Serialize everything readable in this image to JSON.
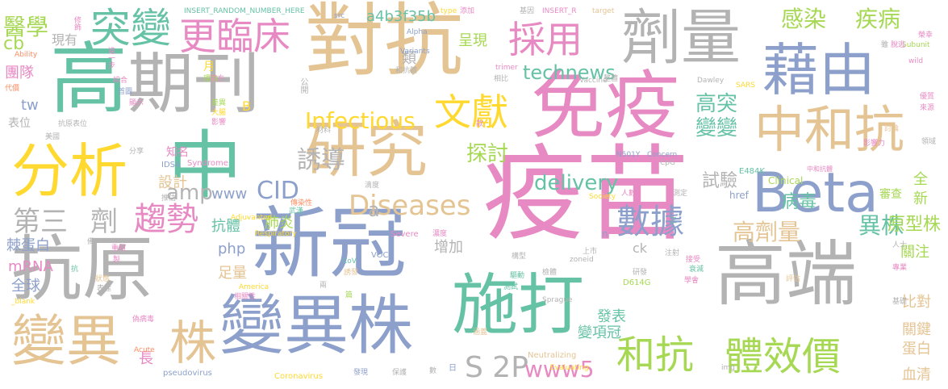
{
  "colors": {
    "pink": "#e78ac3",
    "blue": "#8da0cb",
    "tan": "#e5c494",
    "gray": "#b3b3b3",
    "green": "#66c2a5",
    "lime": "#a6d854",
    "yellow": "#ffd92f",
    "orange": "#fc8d62"
  },
  "words": [
    {
      "text": "疫苗",
      "color": "pink"
    },
    {
      "text": "對抗",
      "color": "tan"
    },
    {
      "text": "免疫",
      "color": "pink"
    },
    {
      "text": "高",
      "color": "green"
    },
    {
      "text": "期刊",
      "color": "gray"
    },
    {
      "text": "新冠",
      "color": "blue"
    },
    {
      "text": "抗原",
      "color": "gray"
    },
    {
      "text": "變異株",
      "color": "blue"
    },
    {
      "text": "高端",
      "color": "gray"
    },
    {
      "text": "Beta",
      "color": "blue"
    },
    {
      "text": "藉由",
      "color": "blue"
    },
    {
      "text": "劑量",
      "color": "gray"
    },
    {
      "text": "中和抗",
      "color": "tan"
    },
    {
      "text": "研究",
      "color": "tan"
    },
    {
      "text": "分析",
      "color": "yellow"
    },
    {
      "text": "中",
      "color": "green"
    },
    {
      "text": "施打",
      "color": "green"
    },
    {
      "text": "變異",
      "color": "tan"
    },
    {
      "text": "株",
      "color": "tan"
    },
    {
      "text": "突變",
      "color": "green"
    },
    {
      "text": "更臨床",
      "color": "pink"
    },
    {
      "text": "醫學",
      "color": "lime"
    },
    {
      "text": "採用",
      "color": "pink"
    },
    {
      "text": "文獻",
      "color": "yellow"
    },
    {
      "text": "感染",
      "color": "lime"
    },
    {
      "text": "疾病",
      "color": "lime"
    },
    {
      "text": "technews",
      "color": "green"
    },
    {
      "text": "Infectious",
      "color": "yellow"
    },
    {
      "text": "Diseases",
      "color": "tan"
    },
    {
      "text": "CID",
      "color": "blue"
    },
    {
      "text": "誘導",
      "color": "gray"
    },
    {
      "text": "探討",
      "color": "lime"
    },
    {
      "text": "delivery",
      "color": "green"
    },
    {
      "text": "第三",
      "color": "gray"
    },
    {
      "text": "劑",
      "color": "gray"
    },
    {
      "text": "趨勢",
      "color": "pink"
    },
    {
      "text": "數據",
      "color": "blue"
    },
    {
      "text": "和抗",
      "color": "lime"
    },
    {
      "text": "體效價",
      "color": "lime"
    },
    {
      "text": "高劑量",
      "color": "tan"
    },
    {
      "text": "異株",
      "color": "green"
    },
    {
      "text": "原型株",
      "color": "lime"
    },
    {
      "text": "病毒",
      "color": "green"
    },
    {
      "text": "試驗",
      "color": "gray"
    },
    {
      "text": "高突",
      "color": "green"
    },
    {
      "text": "變變",
      "color": "green"
    },
    {
      "text": "S 2P",
      "color": "gray"
    },
    {
      "text": "www5",
      "color": "pink"
    },
    {
      "text": "amp",
      "color": "gray"
    },
    {
      "text": "www",
      "color": "blue"
    },
    {
      "text": "肺炎",
      "color": "lime"
    },
    {
      "text": "抗體",
      "color": "green"
    },
    {
      "text": "php",
      "color": "blue"
    },
    {
      "text": "足量",
      "color": "tan"
    },
    {
      "text": "增加",
      "color": "gray"
    },
    {
      "text": "關注",
      "color": "lime"
    },
    {
      "text": "血清",
      "color": "tan"
    },
    {
      "text": "蛋白",
      "color": "tan"
    },
    {
      "text": "關鍵",
      "color": "tan"
    },
    {
      "text": "比對",
      "color": "tan"
    },
    {
      "text": "全",
      "color": "lime"
    },
    {
      "text": "新",
      "color": "lime"
    },
    {
      "text": "審查",
      "color": "lime"
    },
    {
      "text": "發表",
      "color": "green"
    },
    {
      "text": "冠",
      "color": "green"
    },
    {
      "text": "變項",
      "color": "green"
    },
    {
      "text": "長",
      "color": "pink"
    },
    {
      "text": "設計",
      "color": "tan"
    },
    {
      "text": "知名",
      "color": "pink"
    },
    {
      "text": "cb",
      "color": "lime"
    },
    {
      "text": "團隊",
      "color": "pink"
    },
    {
      "text": "現有",
      "color": "gray"
    },
    {
      "text": "類",
      "color": "gray"
    },
    {
      "text": "呈現",
      "color": "lime"
    },
    {
      "text": "a4b3f35b",
      "color": "green"
    },
    {
      "text": "tw",
      "color": "blue"
    },
    {
      "text": "表位",
      "color": "gray"
    },
    {
      "text": "棘蛋白",
      "color": "blue"
    },
    {
      "text": "mRNA",
      "color": "pink"
    },
    {
      "text": "全球",
      "color": "blue"
    },
    {
      "text": "a",
      "color": "gray"
    },
    {
      "text": "B",
      "color": "yellow"
    },
    {
      "text": "ck",
      "color": "gray"
    },
    {
      "text": "n",
      "color": "blue"
    },
    {
      "text": "Clinical",
      "color": "lime"
    },
    {
      "text": "href",
      "color": "blue"
    },
    {
      "text": "E484K",
      "color": "green"
    },
    {
      "text": "D614G",
      "color": "lime"
    },
    {
      "text": "Neutralizing",
      "color": "tan"
    },
    {
      "text": "pseudovirus",
      "color": "blue"
    },
    {
      "text": "Coronavirus",
      "color": "yellow"
    },
    {
      "text": "Respiratory",
      "color": "yellow"
    },
    {
      "text": "Severe",
      "color": "pink"
    },
    {
      "text": "VOCs",
      "color": "blue"
    },
    {
      "text": "Syndrome",
      "color": "pink"
    },
    {
      "text": "IDSA",
      "color": "blue"
    },
    {
      "text": "Adjuvanted",
      "color": "yellow"
    },
    {
      "text": "America",
      "color": "yellow"
    },
    {
      "text": "Evaluating",
      "color": "yellow"
    },
    {
      "text": "Acute",
      "color": "orange"
    },
    {
      "text": "Society",
      "color": "yellow"
    },
    {
      "text": "zoneid",
      "color": "gray"
    },
    {
      "text": "img",
      "color": "gray"
    },
    {
      "text": "trimer",
      "color": "pink"
    },
    {
      "text": "Vaccine",
      "color": "gray"
    },
    {
      "text": "Dawley",
      "color": "gray"
    },
    {
      "text": "SARS",
      "color": "yellow"
    },
    {
      "text": "CpG",
      "color": "gray"
    },
    {
      "text": "Concern",
      "color": "blue"
    },
    {
      "text": "N501Y",
      "color": "blue"
    },
    {
      "text": "Sprague",
      "color": "gray"
    },
    {
      "text": "CoV",
      "color": "green"
    },
    {
      "text": "Variants",
      "color": "blue"
    },
    {
      "text": "Alpha",
      "color": "blue"
    },
    {
      "text": "Ability",
      "color": "orange"
    },
    {
      "text": "Subunit",
      "color": "lime"
    },
    {
      "text": "wild",
      "color": "pink"
    },
    {
      "text": "type",
      "color": "yellow"
    },
    {
      "text": "target",
      "color": "tan"
    },
    {
      "text": "src",
      "color": "blue"
    },
    {
      "text": "_blank",
      "color": "yellow"
    },
    {
      "text": "INSERT_RANDOM_NUMBER_HERE",
      "color": "green"
    },
    {
      "text": "INSERT_R",
      "color": "pink"
    },
    {
      "text": "和抗體",
      "color": "gray"
    },
    {
      "text": "中和抗體",
      "color": "pink"
    },
    {
      "text": "修飾",
      "color": "pink"
    },
    {
      "text": "進一步",
      "color": "pink"
    },
    {
      "text": "代價",
      "color": "orange"
    },
    {
      "text": "綜合",
      "color": "pink"
    },
    {
      "text": "首圖",
      "color": "blue"
    },
    {
      "text": "顯示",
      "color": "pink"
    },
    {
      "text": "抗原表位",
      "color": "gray"
    },
    {
      "text": "美國",
      "color": "gray"
    },
    {
      "text": "月",
      "color": "yellow"
    },
    {
      "text": "理論",
      "color": "lime"
    },
    {
      "text": "官方",
      "color": "pink"
    },
    {
      "text": "公開",
      "color": "gray"
    },
    {
      "text": "差異",
      "color": "lime"
    },
    {
      "text": "大腸",
      "color": "yellow"
    },
    {
      "text": "影響",
      "color": "pink"
    },
    {
      "text": "分享",
      "color": "gray"
    },
    {
      "text": "材料",
      "color": "gray"
    },
    {
      "text": "款",
      "color": "pink"
    },
    {
      "text": "推估",
      "color": "gray"
    },
    {
      "text": "傳染性",
      "color": "orange"
    },
    {
      "text": "武漢",
      "color": "green"
    },
    {
      "text": "滴度",
      "color": "gray"
    },
    {
      "text": "濃度",
      "color": "pink"
    },
    {
      "text": "重組",
      "color": "pink"
    },
    {
      "text": "製",
      "color": "pink"
    },
    {
      "text": "備",
      "color": "gray"
    },
    {
      "text": "抗",
      "color": "green"
    },
    {
      "text": "狀態",
      "color": "tan"
    },
    {
      "text": "表達",
      "color": "gray"
    },
    {
      "text": "偽病毒",
      "color": "pink"
    },
    {
      "text": "相關性",
      "color": "pink"
    },
    {
      "text": "篇",
      "color": "lime"
    },
    {
      "text": "兩",
      "color": "gray"
    },
    {
      "text": "誘發",
      "color": "tan"
    },
    {
      "text": "保護",
      "color": "gray"
    },
    {
      "text": "數",
      "color": "gray"
    },
    {
      "text": "日",
      "color": "blue"
    },
    {
      "text": "發現",
      "color": "blue"
    },
    {
      "text": "涵蓋",
      "color": "tan"
    },
    {
      "text": "測試",
      "color": "green"
    },
    {
      "text": "驅動",
      "color": "green"
    },
    {
      "text": "構型",
      "color": "gray"
    },
    {
      "text": "檢體",
      "color": "gray"
    },
    {
      "text": "研發",
      "color": "gray"
    },
    {
      "text": "上市",
      "color": "gray"
    },
    {
      "text": "接受",
      "color": "pink"
    },
    {
      "text": "衰減",
      "color": "green"
    },
    {
      "text": "注射",
      "color": "gray"
    },
    {
      "text": "人數",
      "color": "pink"
    },
    {
      "text": "三",
      "color": "green"
    },
    {
      "text": "測定",
      "color": "gray"
    },
    {
      "text": "學會",
      "color": "pink"
    },
    {
      "text": "人士",
      "color": "gray"
    },
    {
      "text": "專業",
      "color": "pink"
    },
    {
      "text": "基礎",
      "color": "gray"
    },
    {
      "text": "評估",
      "color": "tan"
    },
    {
      "text": "影響力",
      "color": "pink"
    },
    {
      "text": "討論",
      "color": "tan"
    },
    {
      "text": "優質",
      "color": "pink"
    },
    {
      "text": "來源",
      "color": "pink"
    },
    {
      "text": "領域",
      "color": "gray"
    },
    {
      "text": "脫逃",
      "color": "pink"
    },
    {
      "text": "榮幸",
      "color": "pink"
    },
    {
      "text": "雖",
      "color": "gray"
    },
    {
      "text": "基因",
      "color": "gray"
    },
    {
      "text": "添加",
      "color": "pink"
    },
    {
      "text": "相比",
      "color": "gray"
    },
    {
      "text": "整體",
      "color": "gray"
    }
  ]
}
